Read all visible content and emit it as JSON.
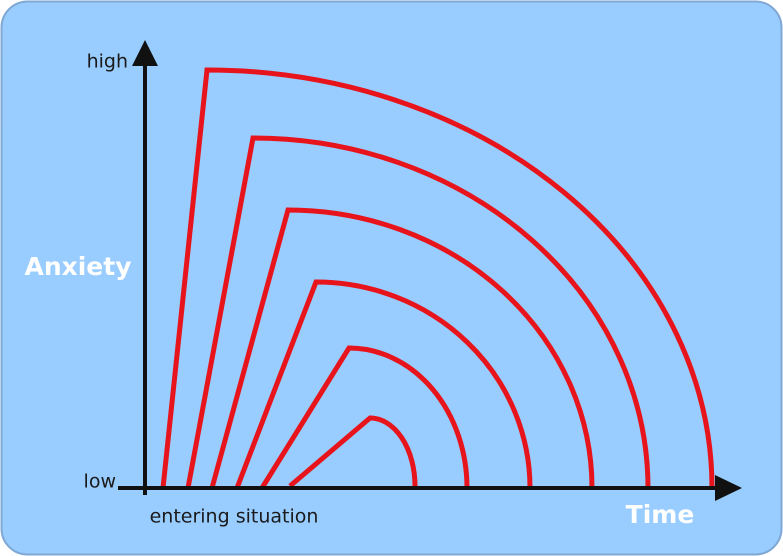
{
  "axes": {
    "y_label": "Anxiety",
    "y_high": "high",
    "y_low": "low",
    "x_label": "Time",
    "x_start": "entering situation"
  }
}
